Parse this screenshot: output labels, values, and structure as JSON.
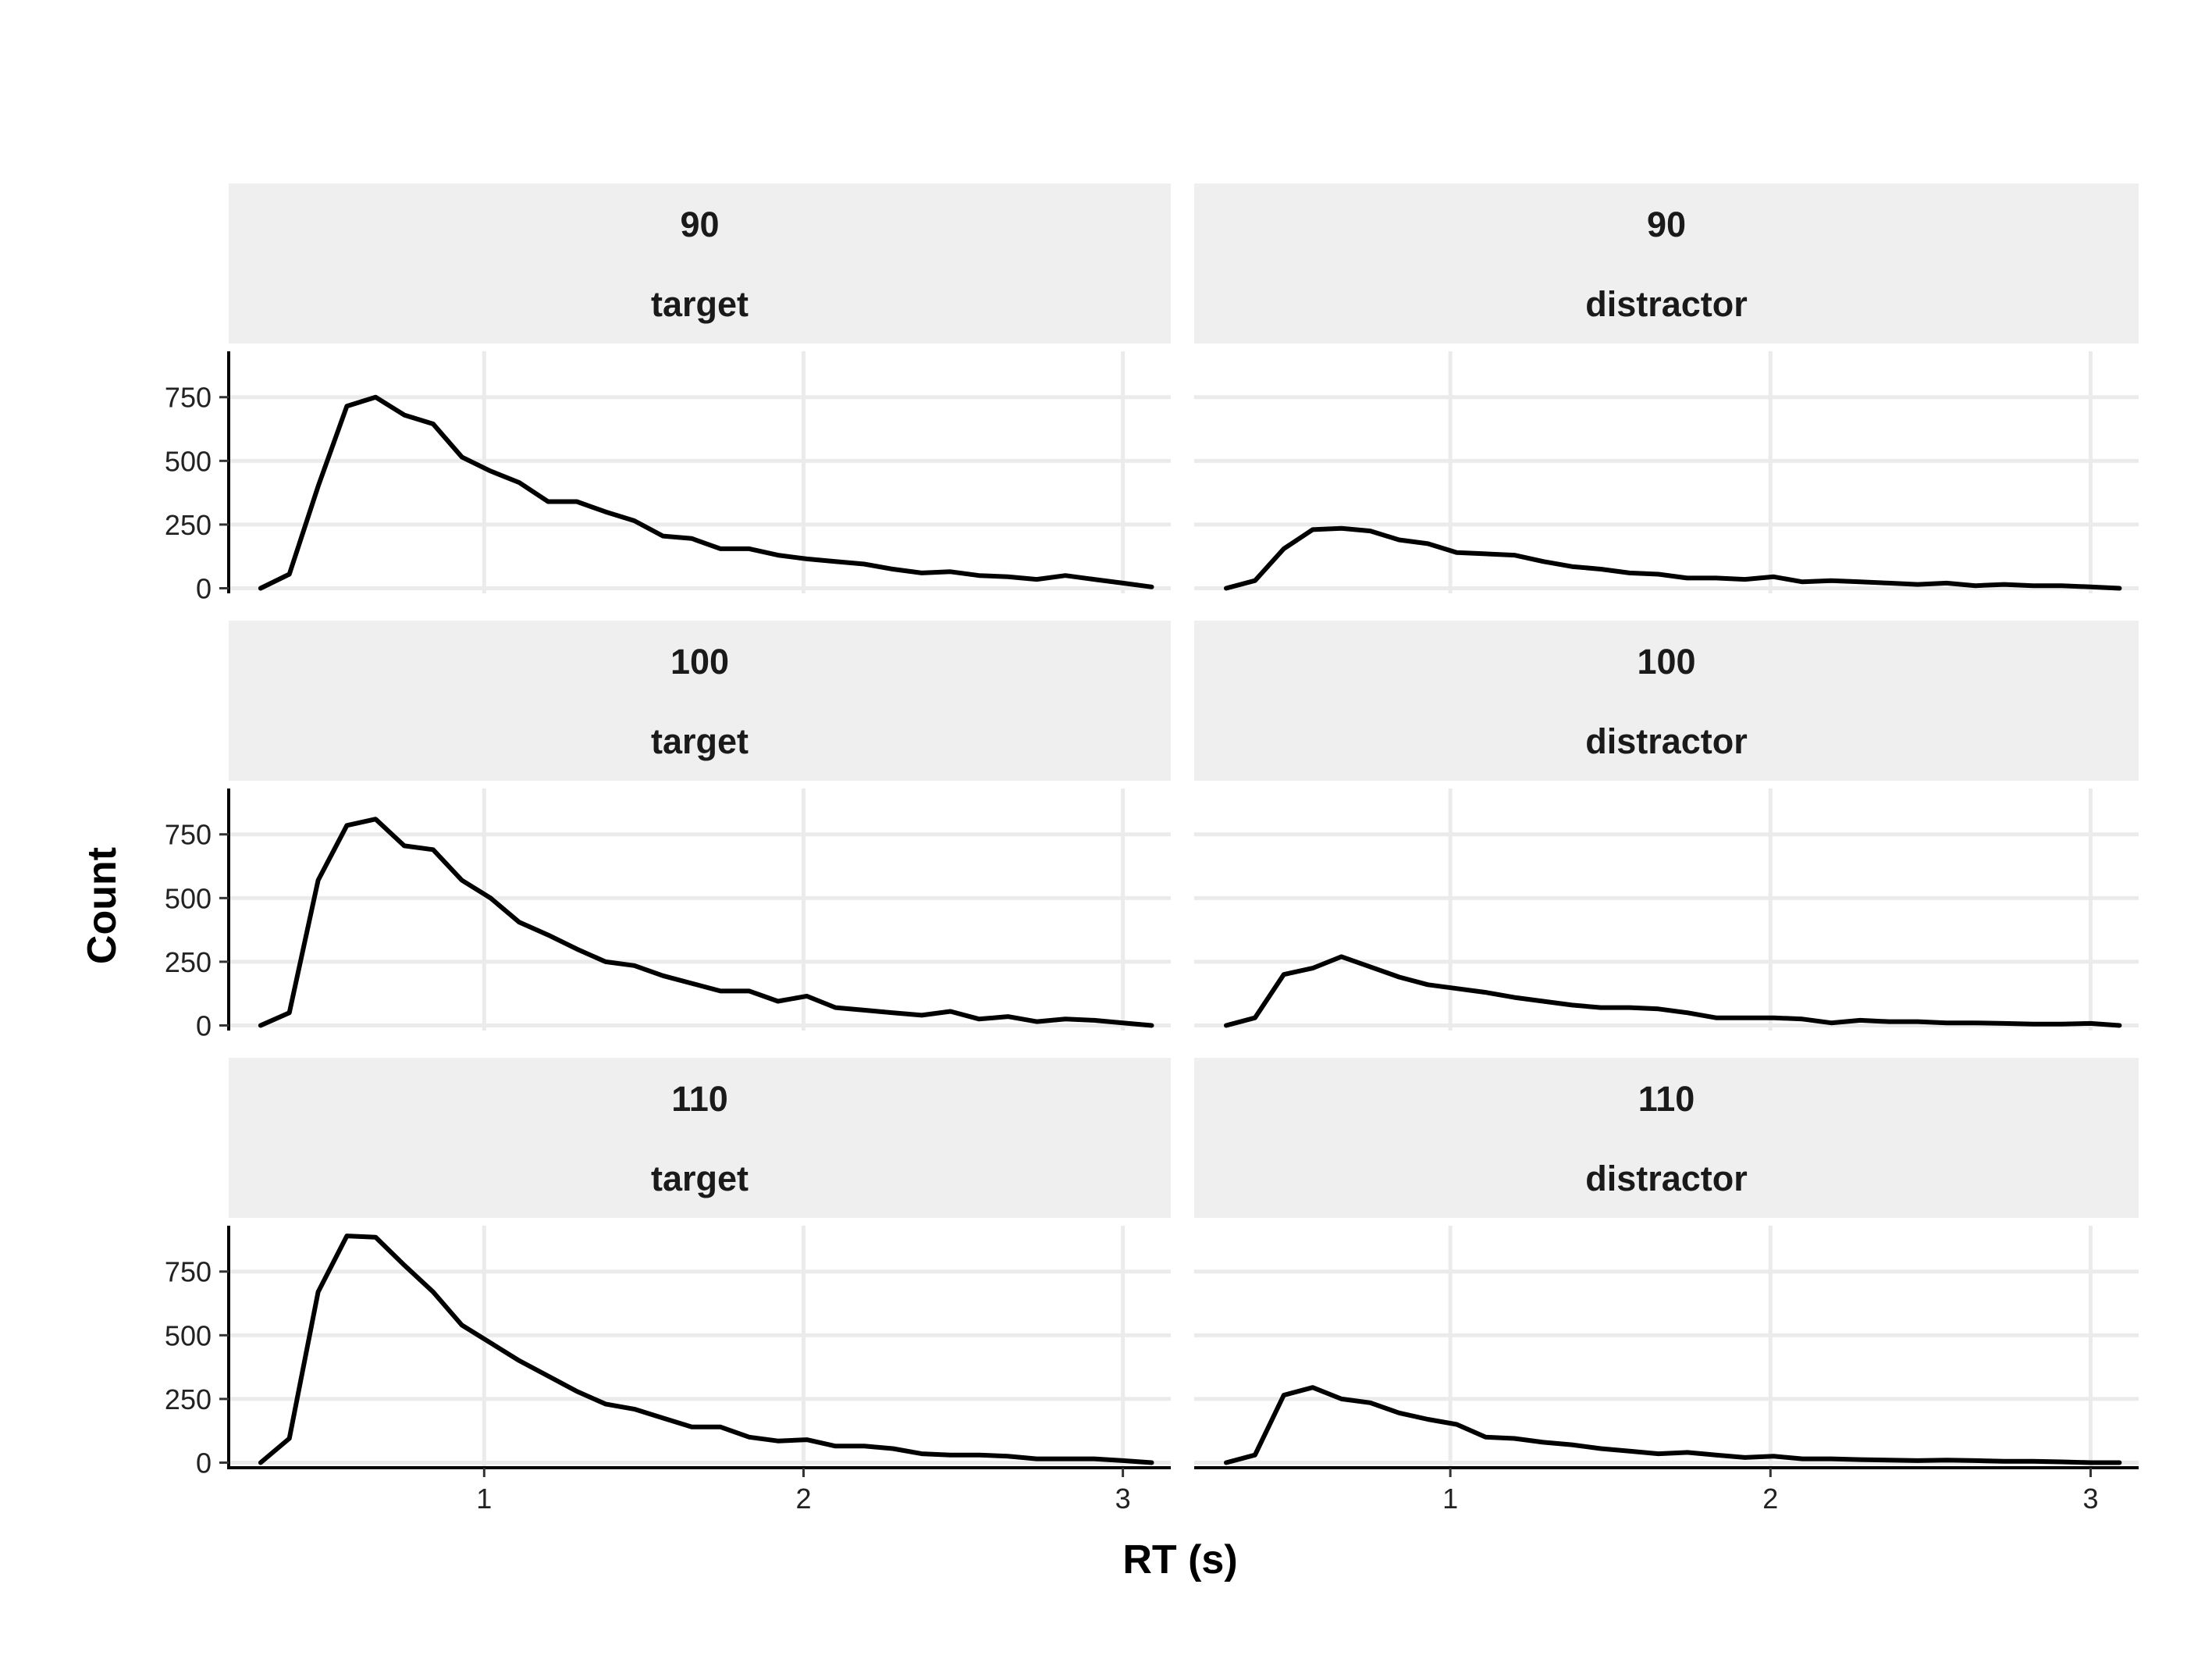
{
  "chart_data": {
    "type": "line",
    "xlabel": "RT (s)",
    "ylabel": "Count",
    "xlim": [
      0.2,
      3.15
    ],
    "ylim": [
      -20,
      930
    ],
    "x_ticks": [
      1,
      2,
      3
    ],
    "y_ticks": [
      0,
      250,
      500,
      750
    ],
    "grid": true,
    "line_color": "#000000",
    "strip_fill": "#efefef",
    "grid_color": "#ebebeb",
    "panels": [
      {
        "row": "90",
        "col": "target",
        "x": [
          0.3,
          0.39,
          0.48,
          0.57,
          0.66,
          0.75,
          0.84,
          0.93,
          1.02,
          1.11,
          1.2,
          1.29,
          1.38,
          1.47,
          1.56,
          1.65,
          1.74,
          1.83,
          1.92,
          2.01,
          2.1,
          2.19,
          2.28,
          2.37,
          2.46,
          2.55,
          2.64,
          2.73,
          2.82,
          2.91,
          3.0,
          3.09
        ],
        "y": [
          0,
          55,
          400,
          715,
          750,
          680,
          645,
          515,
          460,
          415,
          340,
          340,
          300,
          265,
          205,
          195,
          155,
          155,
          130,
          115,
          105,
          95,
          75,
          60,
          65,
          50,
          45,
          35,
          50,
          35,
          20,
          5
        ]
      },
      {
        "row": "90",
        "col": "distractor",
        "x": [
          0.3,
          0.39,
          0.48,
          0.57,
          0.66,
          0.75,
          0.84,
          0.93,
          1.02,
          1.11,
          1.2,
          1.29,
          1.38,
          1.47,
          1.56,
          1.65,
          1.74,
          1.83,
          1.92,
          2.01,
          2.1,
          2.19,
          2.28,
          2.37,
          2.46,
          2.55,
          2.64,
          2.73,
          2.82,
          2.91,
          3.0,
          3.09
        ],
        "y": [
          0,
          30,
          155,
          230,
          235,
          225,
          190,
          175,
          140,
          135,
          130,
          105,
          85,
          75,
          60,
          55,
          40,
          40,
          35,
          45,
          25,
          30,
          25,
          20,
          15,
          20,
          10,
          15,
          10,
          10,
          5,
          0
        ]
      },
      {
        "row": "100",
        "col": "target",
        "x": [
          0.3,
          0.39,
          0.48,
          0.57,
          0.66,
          0.75,
          0.84,
          0.93,
          1.02,
          1.11,
          1.2,
          1.29,
          1.38,
          1.47,
          1.56,
          1.65,
          1.74,
          1.83,
          1.92,
          2.01,
          2.1,
          2.19,
          2.28,
          2.37,
          2.46,
          2.55,
          2.64,
          2.73,
          2.82,
          2.91,
          3.0,
          3.09
        ],
        "y": [
          0,
          50,
          570,
          785,
          810,
          705,
          690,
          570,
          500,
          405,
          355,
          300,
          250,
          235,
          195,
          165,
          135,
          135,
          95,
          115,
          70,
          60,
          50,
          40,
          55,
          25,
          35,
          15,
          25,
          20,
          10,
          0
        ]
      },
      {
        "row": "100",
        "col": "distractor",
        "x": [
          0.3,
          0.39,
          0.48,
          0.57,
          0.66,
          0.75,
          0.84,
          0.93,
          1.02,
          1.11,
          1.2,
          1.29,
          1.38,
          1.47,
          1.56,
          1.65,
          1.74,
          1.83,
          1.92,
          2.01,
          2.1,
          2.19,
          2.28,
          2.37,
          2.46,
          2.55,
          2.64,
          2.73,
          2.82,
          2.91,
          3.0,
          3.09
        ],
        "y": [
          0,
          30,
          200,
          225,
          270,
          230,
          190,
          160,
          145,
          130,
          110,
          95,
          80,
          70,
          70,
          65,
          50,
          30,
          30,
          30,
          25,
          10,
          20,
          15,
          15,
          10,
          10,
          8,
          5,
          5,
          8,
          0
        ]
      },
      {
        "row": "110",
        "col": "target",
        "x": [
          0.3,
          0.39,
          0.48,
          0.57,
          0.66,
          0.75,
          0.84,
          0.93,
          1.02,
          1.11,
          1.2,
          1.29,
          1.38,
          1.47,
          1.56,
          1.65,
          1.74,
          1.83,
          1.92,
          2.01,
          2.1,
          2.19,
          2.28,
          2.37,
          2.46,
          2.55,
          2.64,
          2.73,
          2.82,
          2.91,
          3.0,
          3.09
        ],
        "y": [
          0,
          95,
          670,
          890,
          885,
          775,
          670,
          540,
          470,
          400,
          340,
          280,
          230,
          210,
          175,
          140,
          140,
          100,
          85,
          90,
          65,
          65,
          55,
          35,
          30,
          30,
          25,
          15,
          15,
          15,
          8,
          0
        ]
      },
      {
        "row": "110",
        "col": "distractor",
        "x": [
          0.3,
          0.39,
          0.48,
          0.57,
          0.66,
          0.75,
          0.84,
          0.93,
          1.02,
          1.11,
          1.2,
          1.29,
          1.38,
          1.47,
          1.56,
          1.65,
          1.74,
          1.83,
          1.92,
          2.01,
          2.1,
          2.19,
          2.28,
          2.37,
          2.46,
          2.55,
          2.64,
          2.73,
          2.82,
          2.91,
          3.0,
          3.09
        ],
        "y": [
          0,
          30,
          265,
          295,
          250,
          235,
          195,
          170,
          150,
          100,
          95,
          80,
          70,
          55,
          45,
          35,
          40,
          30,
          20,
          25,
          15,
          15,
          12,
          10,
          8,
          10,
          8,
          5,
          5,
          3,
          0,
          0
        ]
      }
    ]
  }
}
